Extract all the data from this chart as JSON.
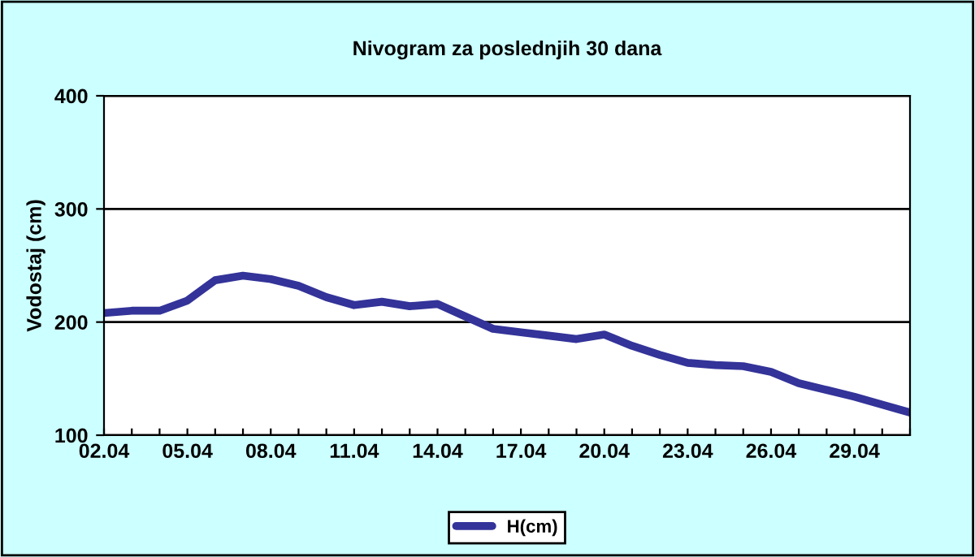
{
  "chart_data": {
    "type": "line",
    "title": "Nivogram za poslednjih 30 dana",
    "ylabel": "Vodostaj (cm)",
    "categories": [
      "02.04",
      null,
      null,
      "05.04",
      null,
      null,
      "08.04",
      null,
      null,
      "11.04",
      null,
      null,
      "14.04",
      null,
      null,
      "17.04",
      null,
      null,
      "20.04",
      null,
      null,
      "23.04",
      null,
      null,
      "26.04",
      null,
      null,
      "29.04",
      null,
      null
    ],
    "series": [
      {
        "name": "H(cm)",
        "color": "#333399",
        "values": [
          208,
          210,
          210,
          219,
          237,
          241,
          238,
          232,
          222,
          215,
          218,
          214,
          216,
          205,
          194,
          191,
          188,
          185,
          189,
          179,
          171,
          164,
          162,
          161,
          156,
          146,
          140,
          134,
          127,
          120
        ]
      }
    ],
    "ylim": [
      100,
      400
    ],
    "yticks": [
      100,
      200,
      300,
      400
    ],
    "grid": "y",
    "legend": "bottom",
    "marker": "none",
    "line_style": "solid"
  }
}
